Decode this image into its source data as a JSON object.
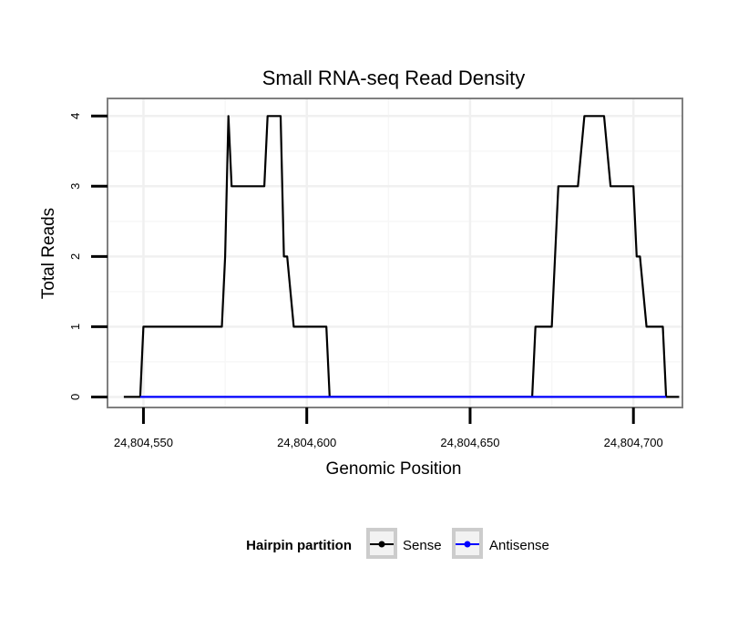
{
  "chart_data": {
    "type": "line",
    "title": "Small RNA-seq Read Density",
    "xlabel": "Genomic Position",
    "ylabel": "Total Reads",
    "xlim": [
      24804539,
      24804715
    ],
    "ylim": [
      -0.15,
      4.25
    ],
    "xticks": [
      24804550,
      24804600,
      24804650,
      24804700
    ],
    "xtick_labels": [
      "24,804,550",
      "24,804,600",
      "24,804,650",
      "24,804,700"
    ],
    "yticks": [
      0,
      1,
      2,
      3,
      4
    ],
    "ytick_labels": [
      "0",
      "1",
      "2",
      "3",
      "4"
    ],
    "grid": true,
    "legend": {
      "title": "Hairpin partition",
      "position": "bottom",
      "entries": [
        {
          "name": "Sense",
          "color": "#000000"
        },
        {
          "name": "Antisense",
          "color": "#0000ff"
        }
      ]
    },
    "series": [
      {
        "name": "Sense",
        "color": "#000000",
        "x": [
          24804544,
          24804549,
          24804550,
          24804574,
          24804575,
          24804576,
          24804577,
          24804587,
          24804588,
          24804592,
          24804593,
          24804594,
          24804596,
          24804606,
          24804607,
          24804669,
          24804670,
          24804675,
          24804677,
          24804683,
          24804685,
          24804691,
          24804693,
          24804700,
          24804701,
          24804702,
          24804704,
          24804709,
          24804710,
          24804714
        ],
        "y": [
          0,
          0,
          1,
          1,
          2,
          4,
          3,
          3,
          4,
          4,
          2,
          2,
          1,
          1,
          0,
          0,
          1,
          1,
          3,
          3,
          4,
          4,
          3,
          3,
          2,
          2,
          1,
          1,
          0,
          0
        ]
      },
      {
        "name": "Antisense",
        "color": "#0000ff",
        "x": [
          24804549,
          24804607,
          24804669,
          24804710
        ],
        "y": [
          0,
          0,
          0,
          0
        ]
      }
    ]
  }
}
